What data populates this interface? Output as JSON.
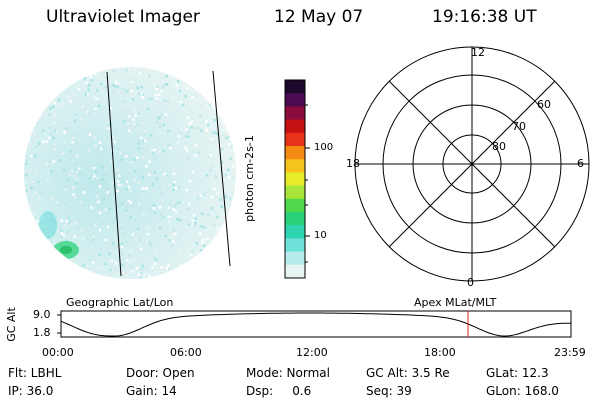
{
  "header": {
    "instrument": "Ultraviolet Imager",
    "date": "12 May 07",
    "time": "19:16:38 UT"
  },
  "colorbar": {
    "label": "photon cm-2s-1",
    "ticks": [
      "100",
      "10"
    ],
    "colors": [
      "#1b0a2e",
      "#4b0b52",
      "#8a0c3c",
      "#c41010",
      "#e8321a",
      "#f58a14",
      "#f6c21e",
      "#e6ec2a",
      "#a8e43a",
      "#4fd84a",
      "#2ad07a",
      "#2fd4b0",
      "#6ee0d8",
      "#b8ecec",
      "#e6f4f2"
    ]
  },
  "polar": {
    "mlt_labels": {
      "top": "12",
      "left": "18",
      "right": "6",
      "bottom": "0"
    },
    "lat_labels": [
      "60",
      "70",
      "80"
    ]
  },
  "timeline": {
    "left_title": "Geographic Lat/Lon",
    "right_title": "Apex  MLat/MLT",
    "y_axis_label": "GC Alt",
    "y_ticks": [
      "9.0",
      "1.8"
    ],
    "x_ticks": [
      "00:00",
      "06:00",
      "12:00",
      "18:00",
      "23:59"
    ],
    "marker_color": "#e02020"
  },
  "info": {
    "flt": "Flt: LBHL",
    "door": "Door: Open",
    "mode": "Mode: Normal",
    "gc_alt": "GC Alt: 3.5 Re",
    "glat": "GLat:  12.3",
    "ip": "IP: 36.0",
    "gain": "Gain: 14",
    "dsp": "Dsp:     0.6",
    "seq": "Seq: 39",
    "glon": "GLon: 168.0"
  }
}
